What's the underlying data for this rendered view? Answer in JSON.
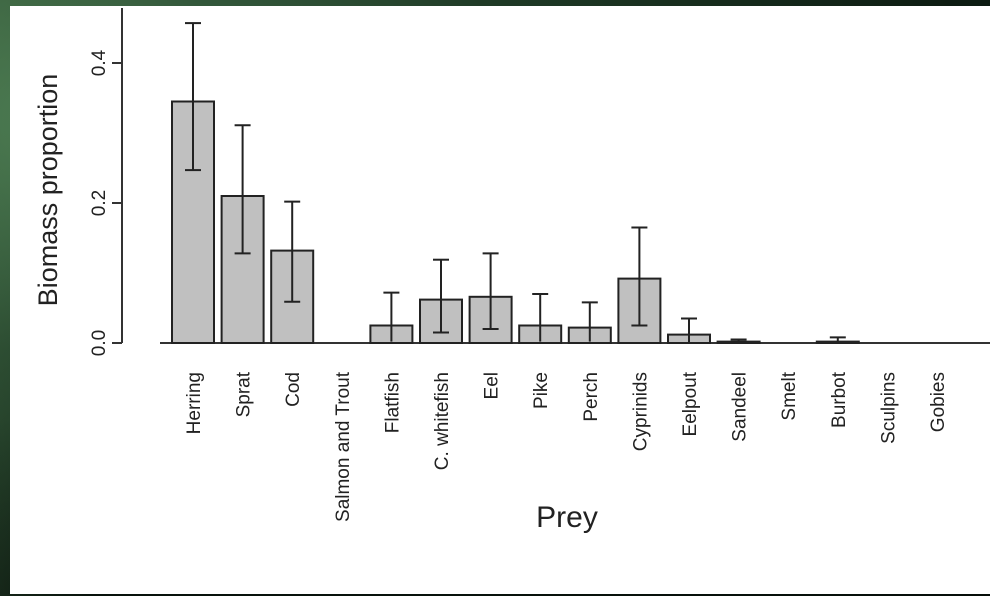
{
  "chart_data": {
    "type": "bar",
    "title": "",
    "xlabel": "Prey",
    "ylabel": "Biomass proportion",
    "ylim": [
      0,
      0.48
    ],
    "yticks": [
      "0.0",
      "0.2",
      "0.4"
    ],
    "grid": false,
    "categories": [
      "Herring",
      "Sprat",
      "Cod",
      "Salmon and Trout",
      "Flatfish",
      "C. whitefish",
      "Eel",
      "Pike",
      "Perch",
      "Cyprinids",
      "Eelpout",
      "Sandeel",
      "Smelt",
      "Burbot",
      "Sculpins",
      "Gobies"
    ],
    "values": [
      0.345,
      0.21,
      0.132,
      0.0,
      0.025,
      0.062,
      0.066,
      0.025,
      0.022,
      0.092,
      0.012,
      0.002,
      0.0,
      0.002,
      0.0,
      0.0
    ],
    "error_lower": [
      0.247,
      0.128,
      0.059,
      0.0,
      0.002,
      0.015,
      0.02,
      0.002,
      0.002,
      0.025,
      0.001,
      0.0,
      0.0,
      0.0,
      0.0,
      0.0
    ],
    "error_upper": [
      0.457,
      0.311,
      0.202,
      0.0,
      0.072,
      0.119,
      0.128,
      0.07,
      0.058,
      0.165,
      0.035,
      0.005,
      0.0,
      0.008,
      0.0,
      0.0
    ],
    "bar_color": "#c0c0c0",
    "edge_color": "#222222"
  }
}
